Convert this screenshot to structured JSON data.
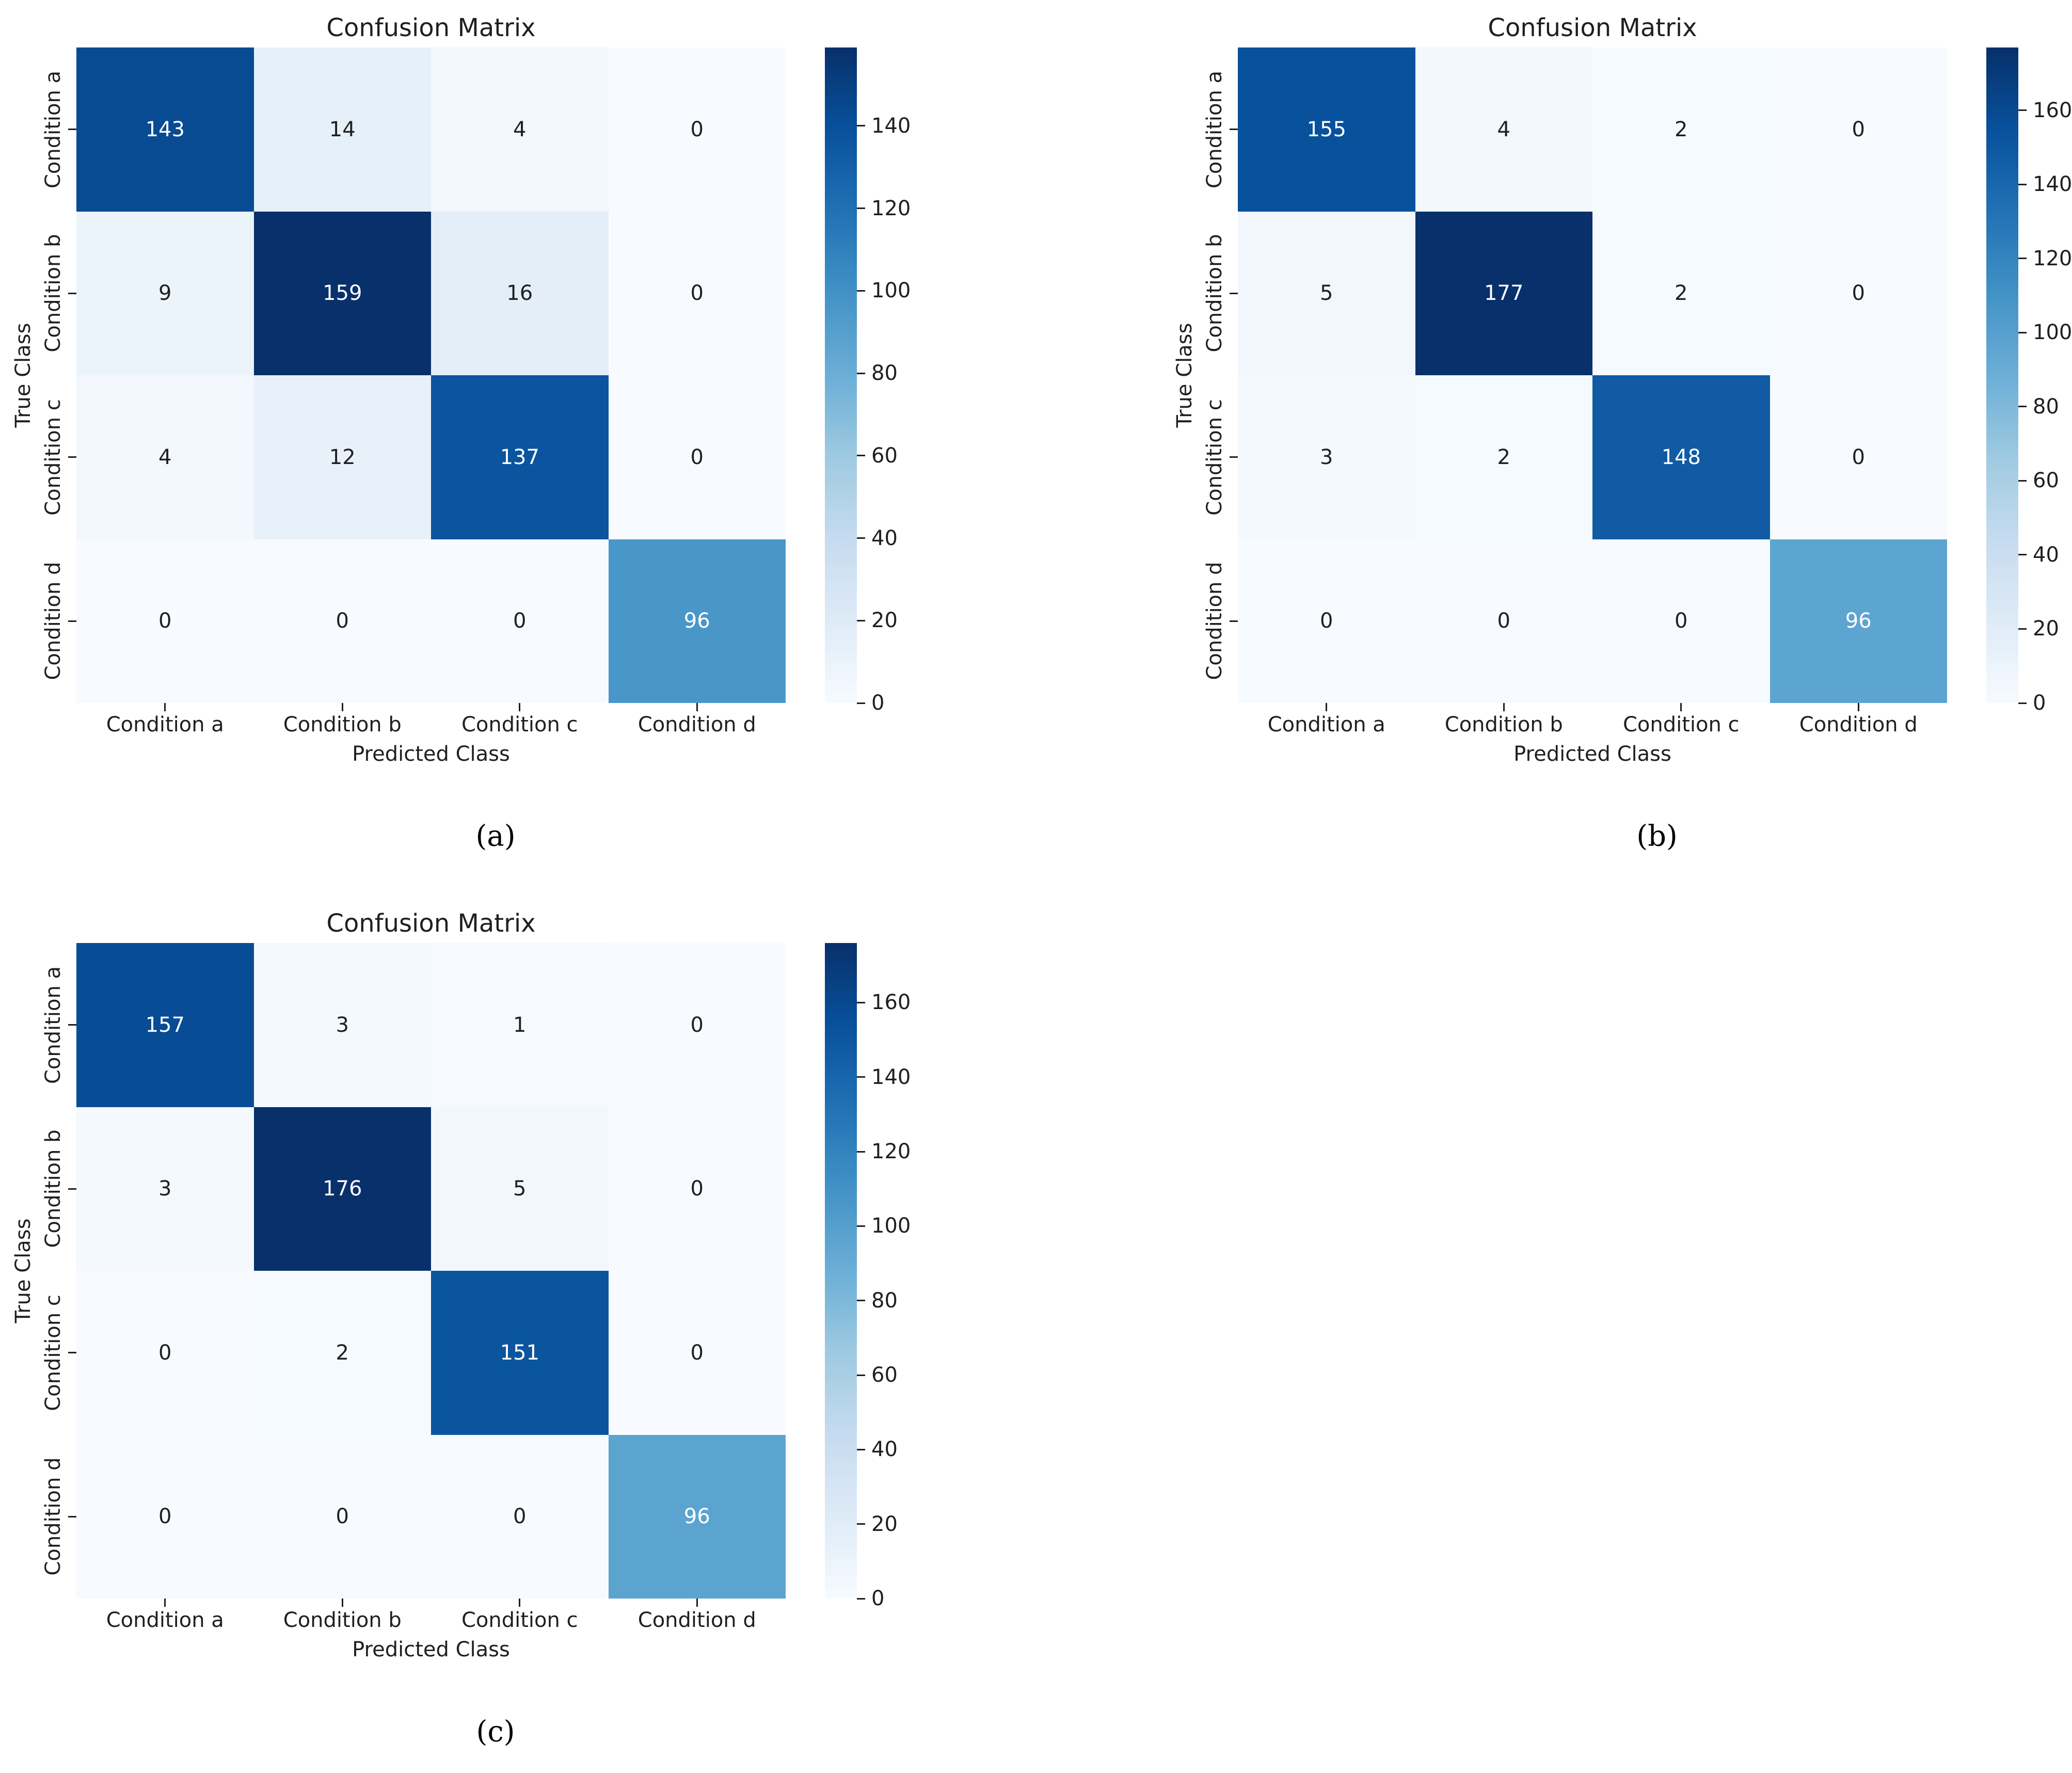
{
  "figure": {
    "background": "#ffffff",
    "colors": {
      "text": "#1f1f1f",
      "annot_light": "#ffffff",
      "annot_dark": "#1f1f1f",
      "cmap_name": "Blues",
      "cmap_stops": [
        "#f7fbff",
        "#deebf7",
        "#c6dbef",
        "#9ecae1",
        "#6baed6",
        "#4292c6",
        "#2171b5",
        "#08519c",
        "#08306b"
      ]
    }
  },
  "chart_data": [
    {
      "type": "heatmap",
      "caption": "(a)",
      "title": "Confusion Matrix",
      "xlabel": "Predicted Class",
      "ylabel": "True Class",
      "x_categories": [
        "Condition a",
        "Condition b",
        "Condition c",
        "Condition d"
      ],
      "y_categories": [
        "Condition a",
        "Condition b",
        "Condition c",
        "Condition d"
      ],
      "values": [
        [
          143,
          14,
          4,
          0
        ],
        [
          9,
          159,
          16,
          0
        ],
        [
          4,
          12,
          137,
          0
        ],
        [
          0,
          0,
          0,
          96
        ]
      ],
      "vmin": 0,
      "vmax": 159,
      "colorbar_ticks": [
        0,
        20,
        40,
        60,
        80,
        100,
        120,
        140
      ],
      "colormap": "Blues",
      "colorbar_position": "right",
      "grid": false
    },
    {
      "type": "heatmap",
      "caption": "(b)",
      "title": "Confusion Matrix",
      "xlabel": "Predicted Class",
      "ylabel": "True Class",
      "x_categories": [
        "Condition a",
        "Condition b",
        "Condition c",
        "Condition d"
      ],
      "y_categories": [
        "Condition a",
        "Condition b",
        "Condition c",
        "Condition d"
      ],
      "values": [
        [
          155,
          4,
          2,
          0
        ],
        [
          5,
          177,
          2,
          0
        ],
        [
          3,
          2,
          148,
          0
        ],
        [
          0,
          0,
          0,
          96
        ]
      ],
      "vmin": 0,
      "vmax": 177,
      "colorbar_ticks": [
        0,
        20,
        40,
        60,
        80,
        100,
        120,
        140,
        160
      ],
      "colormap": "Blues",
      "colorbar_position": "right",
      "grid": false
    },
    {
      "type": "heatmap",
      "caption": "(c)",
      "title": "Confusion Matrix",
      "xlabel": "Predicted Class",
      "ylabel": "True Class",
      "x_categories": [
        "Condition a",
        "Condition b",
        "Condition c",
        "Condition d"
      ],
      "y_categories": [
        "Condition a",
        "Condition b",
        "Condition c",
        "Condition d"
      ],
      "values": [
        [
          157,
          3,
          1,
          0
        ],
        [
          3,
          176,
          5,
          0
        ],
        [
          0,
          2,
          151,
          0
        ],
        [
          0,
          0,
          0,
          96
        ]
      ],
      "vmin": 0,
      "vmax": 176,
      "colorbar_ticks": [
        0,
        20,
        40,
        60,
        80,
        100,
        120,
        140,
        160
      ],
      "colormap": "Blues",
      "colorbar_position": "right",
      "grid": false
    }
  ]
}
